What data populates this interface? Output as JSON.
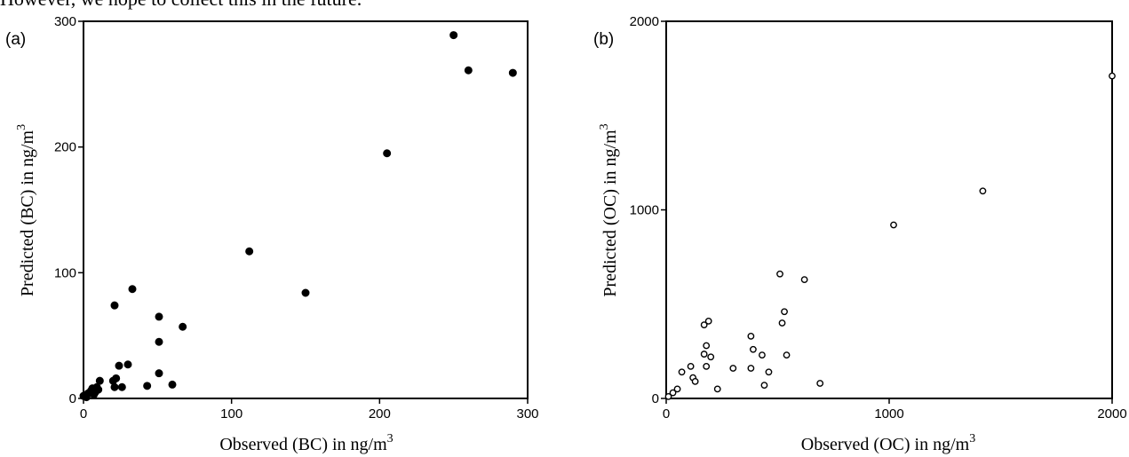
{
  "header_text": "However, we hope to collect this in the future.",
  "chart_data": [
    {
      "type": "scatter",
      "panel_label": "(a)",
      "xlabel": "Observed (BC) in ng/m",
      "xlabel_sup": "3",
      "ylabel": "Predicted (BC) in ng/m",
      "ylabel_sup": "3",
      "xlim": [
        0,
        300
      ],
      "ylim": [
        0,
        300
      ],
      "xticks": [
        0,
        100,
        200,
        300
      ],
      "yticks": [
        0,
        100,
        200,
        300
      ],
      "grid": false,
      "marker": "filled-circle",
      "points": [
        [
          0,
          2
        ],
        [
          2,
          1
        ],
        [
          3,
          4
        ],
        [
          5,
          6
        ],
        [
          6,
          8
        ],
        [
          7,
          3
        ],
        [
          8,
          5
        ],
        [
          9,
          9
        ],
        [
          10,
          7
        ],
        [
          11,
          14
        ],
        [
          20,
          14
        ],
        [
          21,
          9
        ],
        [
          22,
          16
        ],
        [
          24,
          26
        ],
        [
          26,
          9
        ],
        [
          30,
          27
        ],
        [
          33,
          87
        ],
        [
          21,
          74
        ],
        [
          43,
          10
        ],
        [
          51,
          65
        ],
        [
          51,
          45
        ],
        [
          51,
          20
        ],
        [
          60,
          11
        ],
        [
          67,
          57
        ],
        [
          112,
          117
        ],
        [
          150,
          84
        ],
        [
          205,
          195
        ],
        [
          250,
          289
        ],
        [
          260,
          261
        ],
        [
          290,
          259
        ]
      ]
    },
    {
      "type": "scatter",
      "panel_label": "(b)",
      "xlabel": "Observed (OC) in ng/m",
      "xlabel_sup": "3",
      "ylabel": "Predicted (OC) in ng/m",
      "ylabel_sup": "3",
      "xlim": [
        0,
        2000
      ],
      "ylim": [
        0,
        2000
      ],
      "xticks": [
        0,
        1000,
        2000
      ],
      "yticks": [
        0,
        1000,
        2000
      ],
      "grid": false,
      "marker": "open-circle",
      "points": [
        [
          10,
          10
        ],
        [
          30,
          30
        ],
        [
          50,
          50
        ],
        [
          70,
          140
        ],
        [
          110,
          170
        ],
        [
          120,
          110
        ],
        [
          130,
          90
        ],
        [
          170,
          235
        ],
        [
          170,
          390
        ],
        [
          180,
          170
        ],
        [
          180,
          280
        ],
        [
          190,
          410
        ],
        [
          200,
          220
        ],
        [
          230,
          50
        ],
        [
          300,
          160
        ],
        [
          380,
          160
        ],
        [
          380,
          330
        ],
        [
          390,
          260
        ],
        [
          430,
          230
        ],
        [
          440,
          70
        ],
        [
          460,
          140
        ],
        [
          510,
          660
        ],
        [
          520,
          400
        ],
        [
          530,
          460
        ],
        [
          540,
          230
        ],
        [
          620,
          630
        ],
        [
          690,
          80
        ],
        [
          1020,
          920
        ],
        [
          1420,
          1100
        ],
        [
          2000,
          1710
        ]
      ]
    }
  ]
}
